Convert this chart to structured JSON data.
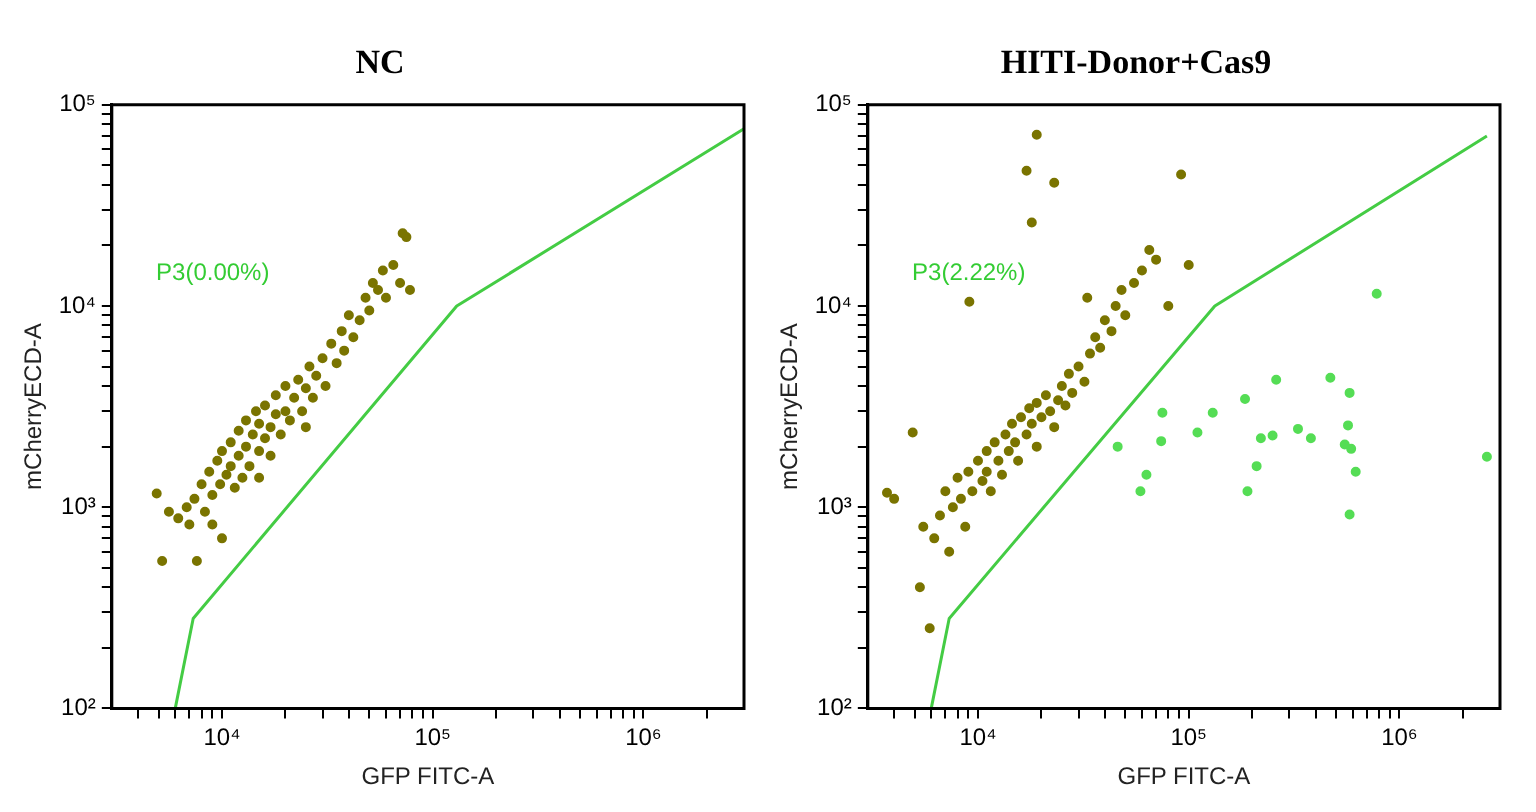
{
  "chart_data": [
    {
      "type": "scatter",
      "title": "NC",
      "xlabel": "GFP FITC-A",
      "ylabel": "mCherryECD-A",
      "log": "xy",
      "grid": false,
      "legend": false,
      "xlim": [
        3000,
        3000000
      ],
      "ylim": [
        100,
        100000
      ],
      "xticks": [
        {
          "value": 4000,
          "label": null
        },
        {
          "value": 5000,
          "label": null
        },
        {
          "value": 6000,
          "label": null
        },
        {
          "value": 7000,
          "label": null
        },
        {
          "value": 8000,
          "label": null
        },
        {
          "value": 9000,
          "label": null
        },
        {
          "value": 10000,
          "label": "10⁴"
        },
        {
          "value": 20000,
          "label": null
        },
        {
          "value": 30000,
          "label": null
        },
        {
          "value": 40000,
          "label": null
        },
        {
          "value": 50000,
          "label": null
        },
        {
          "value": 60000,
          "label": null
        },
        {
          "value": 70000,
          "label": null
        },
        {
          "value": 80000,
          "label": null
        },
        {
          "value": 90000,
          "label": null
        },
        {
          "value": 100000,
          "label": "10⁵"
        },
        {
          "value": 200000,
          "label": null
        },
        {
          "value": 300000,
          "label": null
        },
        {
          "value": 400000,
          "label": null
        },
        {
          "value": 500000,
          "label": null
        },
        {
          "value": 600000,
          "label": null
        },
        {
          "value": 700000,
          "label": null
        },
        {
          "value": 800000,
          "label": null
        },
        {
          "value": 900000,
          "label": null
        },
        {
          "value": 1000000,
          "label": "10⁶"
        },
        {
          "value": 2000000,
          "label": null
        }
      ],
      "yticks": [
        {
          "value": 100,
          "label": "10²"
        },
        {
          "value": 200,
          "label": null
        },
        {
          "value": 300,
          "label": null
        },
        {
          "value": 400,
          "label": null
        },
        {
          "value": 500,
          "label": null
        },
        {
          "value": 600,
          "label": null
        },
        {
          "value": 700,
          "label": null
        },
        {
          "value": 800,
          "label": null
        },
        {
          "value": 900,
          "label": null
        },
        {
          "value": 1000,
          "label": "10³"
        },
        {
          "value": 2000,
          "label": null
        },
        {
          "value": 3000,
          "label": null
        },
        {
          "value": 4000,
          "label": null
        },
        {
          "value": 5000,
          "label": null
        },
        {
          "value": 6000,
          "label": null
        },
        {
          "value": 7000,
          "label": null
        },
        {
          "value": 8000,
          "label": null
        },
        {
          "value": 9000,
          "label": null
        },
        {
          "value": 10000,
          "label": "10⁴"
        },
        {
          "value": 20000,
          "label": null
        },
        {
          "value": 30000,
          "label": null
        },
        {
          "value": 40000,
          "label": null
        },
        {
          "value": 50000,
          "label": null
        },
        {
          "value": 60000,
          "label": null
        },
        {
          "value": 70000,
          "label": null
        },
        {
          "value": 80000,
          "label": null
        },
        {
          "value": 90000,
          "label": null
        },
        {
          "value": 100000,
          "label": "10⁵"
        }
      ],
      "annotations": [
        "P3(0.00%)"
      ],
      "series": [
        {
          "type": "scatter",
          "marker": "circle",
          "color": "#7a7400",
          "x": [
            4900,
            5200,
            5600,
            6200,
            6800,
            7000,
            7400,
            7600,
            8000,
            8300,
            8700,
            9000,
            9500,
            9800,
            10000,
            10500,
            11000,
            11000,
            11500,
            12000,
            12000,
            12500,
            13000,
            13000,
            13500,
            14000,
            14500,
            15000,
            15000,
            16000,
            16000,
            17000,
            17000,
            18000,
            18000,
            19000,
            20000,
            20000,
            21000,
            22000,
            23000,
            24000,
            25000,
            26000,
            27000,
            28000,
            30000,
            31000,
            33000,
            35000,
            37000,
            38000,
            40000,
            42000,
            45000,
            48000,
            50000,
            52000,
            55000,
            58000,
            60000,
            65000,
            70000,
            72000,
            75000,
            78000,
            10000,
            9000,
            15000,
            25000
          ],
          "values": [
            1170,
            540,
            950,
            880,
            1000,
            820,
            1100,
            540,
            1300,
            950,
            1500,
            1150,
            1700,
            1300,
            1900,
            1450,
            2100,
            1600,
            1250,
            2400,
            1800,
            1400,
            2700,
            2000,
            1600,
            2300,
            3000,
            1900,
            2600,
            2200,
            3200,
            2500,
            1800,
            2900,
            3600,
            2300,
            3000,
            4000,
            2700,
            3500,
            4300,
            3000,
            3900,
            5000,
            3500,
            4500,
            5500,
            4000,
            6500,
            5200,
            7500,
            6000,
            9000,
            7000,
            8500,
            11000,
            9500,
            13000,
            12000,
            15000,
            11000,
            16000,
            13000,
            23000,
            22000,
            12000,
            700,
            820,
            1400,
            2500
          ]
        },
        {
          "type": "line",
          "marker": "none",
          "color": "#44cc44",
          "x": [
            6000,
            7300,
            130000,
            3000000
          ],
          "values": [
            100,
            280,
            10000,
            76000
          ]
        }
      ]
    },
    {
      "type": "scatter",
      "title": "HITI-Donor+Cas9",
      "xlabel": "GFP FITC-A",
      "ylabel": "mCherryECD-A",
      "log": "xy",
      "grid": false,
      "legend": false,
      "xlim": [
        3000,
        3000000
      ],
      "ylim": [
        100,
        100000
      ],
      "xticks": [
        {
          "value": 4000,
          "label": null
        },
        {
          "value": 5000,
          "label": null
        },
        {
          "value": 6000,
          "label": null
        },
        {
          "value": 7000,
          "label": null
        },
        {
          "value": 8000,
          "label": null
        },
        {
          "value": 9000,
          "label": null
        },
        {
          "value": 10000,
          "label": "10⁴"
        },
        {
          "value": 20000,
          "label": null
        },
        {
          "value": 30000,
          "label": null
        },
        {
          "value": 40000,
          "label": null
        },
        {
          "value": 50000,
          "label": null
        },
        {
          "value": 60000,
          "label": null
        },
        {
          "value": 70000,
          "label": null
        },
        {
          "value": 80000,
          "label": null
        },
        {
          "value": 90000,
          "label": null
        },
        {
          "value": 100000,
          "label": "10⁵"
        },
        {
          "value": 200000,
          "label": null
        },
        {
          "value": 300000,
          "label": null
        },
        {
          "value": 400000,
          "label": null
        },
        {
          "value": 500000,
          "label": null
        },
        {
          "value": 600000,
          "label": null
        },
        {
          "value": 700000,
          "label": null
        },
        {
          "value": 800000,
          "label": null
        },
        {
          "value": 900000,
          "label": null
        },
        {
          "value": 1000000,
          "label": "10⁶"
        },
        {
          "value": 2000000,
          "label": null
        }
      ],
      "yticks": [
        {
          "value": 100,
          "label": "10²"
        },
        {
          "value": 200,
          "label": null
        },
        {
          "value": 300,
          "label": null
        },
        {
          "value": 400,
          "label": null
        },
        {
          "value": 500,
          "label": null
        },
        {
          "value": 600,
          "label": null
        },
        {
          "value": 700,
          "label": null
        },
        {
          "value": 800,
          "label": null
        },
        {
          "value": 900,
          "label": null
        },
        {
          "value": 1000,
          "label": "10³"
        },
        {
          "value": 2000,
          "label": null
        },
        {
          "value": 3000,
          "label": null
        },
        {
          "value": 4000,
          "label": null
        },
        {
          "value": 5000,
          "label": null
        },
        {
          "value": 6000,
          "label": null
        },
        {
          "value": 7000,
          "label": null
        },
        {
          "value": 8000,
          "label": null
        },
        {
          "value": 9000,
          "label": null
        },
        {
          "value": 10000,
          "label": "10⁴"
        },
        {
          "value": 20000,
          "label": null
        },
        {
          "value": 30000,
          "label": null
        },
        {
          "value": 40000,
          "label": null
        },
        {
          "value": 50000,
          "label": null
        },
        {
          "value": 60000,
          "label": null
        },
        {
          "value": 70000,
          "label": null
        },
        {
          "value": 80000,
          "label": null
        },
        {
          "value": 90000,
          "label": null
        },
        {
          "value": 100000,
          "label": "10⁵"
        }
      ],
      "annotations": [
        "P3(2.22%)"
      ],
      "series": [
        {
          "type": "scatter",
          "marker": "circle",
          "color": "#7a7400",
          "x": [
            3700,
            4000,
            4900,
            5300,
            5900,
            5500,
            6200,
            6600,
            7000,
            7300,
            7600,
            8000,
            8300,
            8700,
            9000,
            9400,
            10000,
            10500,
            11000,
            11000,
            11500,
            12000,
            12500,
            13000,
            13500,
            14000,
            14500,
            15000,
            15500,
            16000,
            17000,
            17500,
            18000,
            19000,
            19000,
            20000,
            21000,
            22000,
            23000,
            24000,
            25000,
            26000,
            27000,
            28000,
            30000,
            32000,
            34000,
            36000,
            38000,
            40000,
            43000,
            45000,
            48000,
            50000,
            55000,
            60000,
            65000,
            70000,
            80000,
            100000,
            9100,
            17000,
            18000,
            19000,
            23000,
            92000,
            33000
          ],
          "values": [
            1180,
            1100,
            2350,
            400,
            250,
            800,
            700,
            910,
            1200,
            600,
            1000,
            1400,
            1100,
            800,
            1500,
            1200,
            1700,
            1350,
            1900,
            1500,
            1200,
            2100,
            1700,
            1450,
            2300,
            1900,
            2600,
            2100,
            1700,
            2800,
            2300,
            3100,
            2600,
            2000,
            3300,
            2800,
            3600,
            3000,
            2500,
            3400,
            4000,
            3200,
            4600,
            3700,
            5000,
            4200,
            5800,
            7000,
            6200,
            8500,
            7500,
            10000,
            12000,
            9000,
            13000,
            15000,
            19000,
            17000,
            10000,
            16000,
            10500,
            47000,
            26000,
            71000,
            41000,
            45000,
            11000
          ]
        },
        {
          "type": "scatter",
          "marker": "circle",
          "color": "#55dd55",
          "x": [
            780000,
            470000,
            260000,
            580000,
            185000,
            130000,
            75000,
            330000,
            570000,
            250000,
            220000,
            380000,
            110000,
            74000,
            550000,
            590000,
            46000,
            2600000,
            210000,
            620000,
            63000,
            59000,
            190000,
            580000
          ],
          "values": [
            11500,
            4400,
            4300,
            3700,
            3450,
            2950,
            2950,
            2450,
            2550,
            2270,
            2200,
            2200,
            2350,
            2130,
            2050,
            1950,
            2000,
            1780,
            1600,
            1500,
            1450,
            1200,
            1200,
            920
          ]
        },
        {
          "type": "line",
          "marker": "none",
          "color": "#44cc44",
          "x": [
            6000,
            7300,
            133000,
            2600000
          ],
          "values": [
            100,
            280,
            10000,
            70000
          ]
        }
      ]
    }
  ]
}
